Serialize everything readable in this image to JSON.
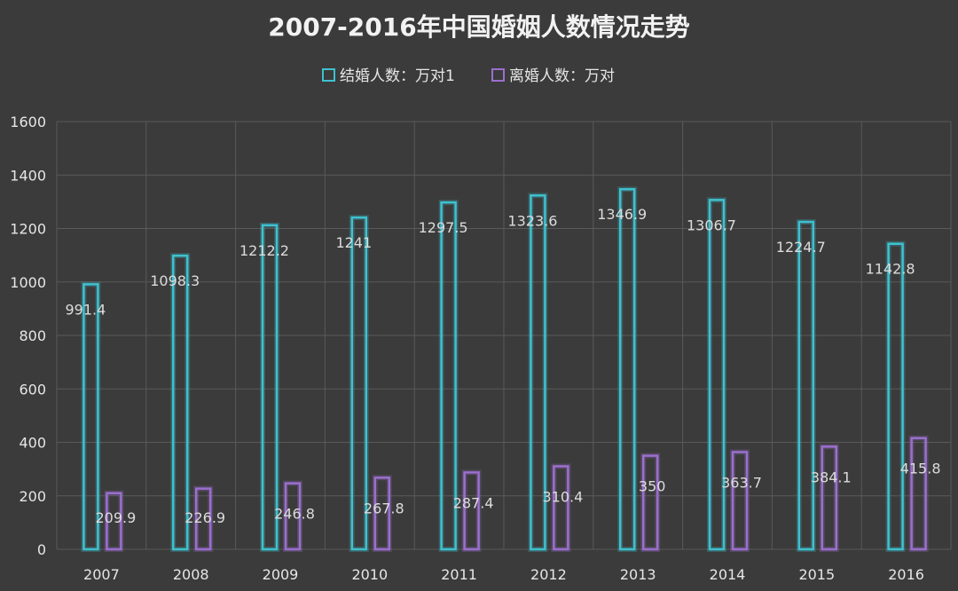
{
  "colors": {
    "background": "#3b3b3b",
    "marriage": "#3ec1cf",
    "divorce": "#9b6fcf",
    "grid": "#5a5a5a",
    "text": "#e6e6e6"
  },
  "chart_data": {
    "type": "bar",
    "title": "2007-2016年中国婚姻人数情况走势",
    "xlabel": "",
    "ylabel": "",
    "ylim": [
      0,
      1600
    ],
    "yticks": [
      0,
      200,
      400,
      600,
      800,
      1000,
      1200,
      1400,
      1600
    ],
    "grid": true,
    "legend_position": "top-center",
    "categories": [
      "2007",
      "2008",
      "2009",
      "2010",
      "2011",
      "2012",
      "2013",
      "2014",
      "2015",
      "2016"
    ],
    "series": [
      {
        "name": "结婚人数：万对1",
        "color": "#3ec1cf",
        "values": [
          991.4,
          1098.3,
          1212.2,
          1241,
          1297.5,
          1323.6,
          1346.9,
          1306.7,
          1224.7,
          1142.8
        ],
        "labels": [
          "991.4",
          "1098.3",
          "1212.2",
          "1241",
          "1297.5",
          "1323.6",
          "1346.9",
          "1306.7",
          "1224.7",
          "1142.8"
        ]
      },
      {
        "name": "离婚人数：万对",
        "color": "#9b6fcf",
        "values": [
          209.9,
          226.9,
          246.8,
          267.8,
          287.4,
          310.4,
          350,
          363.7,
          384.1,
          415.8
        ],
        "labels": [
          "209.9",
          "226.9",
          "246.8",
          "267.8",
          "287.4",
          "310.4",
          "350",
          "363.7",
          "384.1",
          "415.8"
        ]
      }
    ]
  }
}
